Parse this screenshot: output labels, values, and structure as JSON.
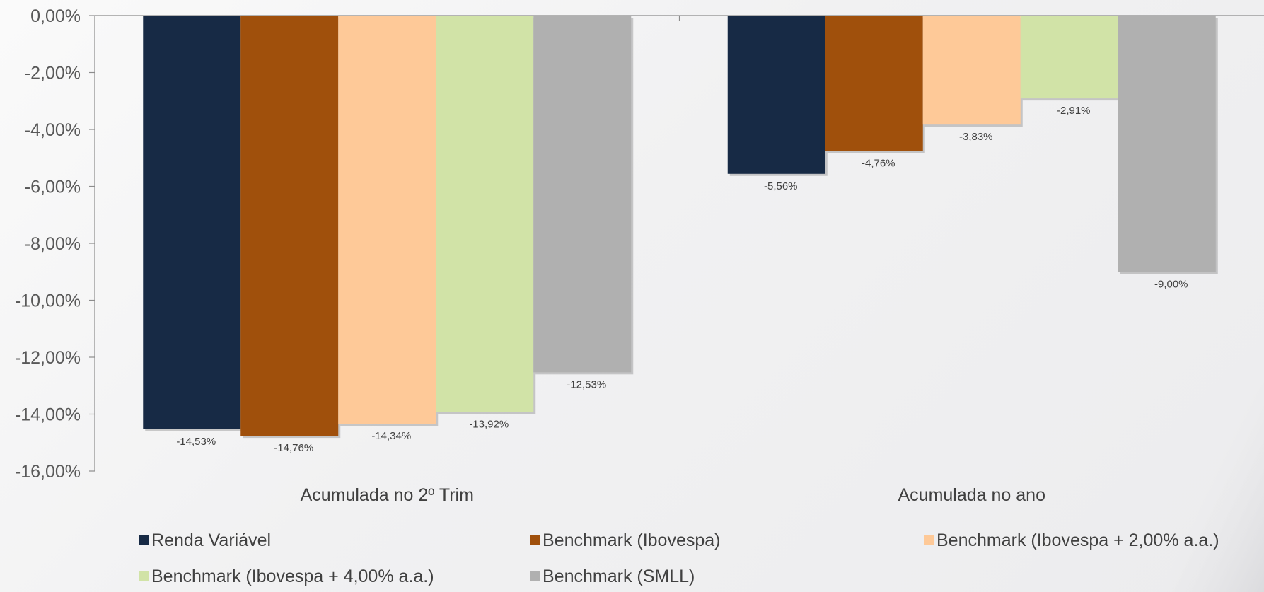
{
  "chart_data": {
    "type": "bar",
    "categories": [
      "Acumulada no 2º Trim",
      "Acumulada no ano"
    ],
    "series": [
      {
        "name": "Renda Variável",
        "color": "#172a45",
        "values": [
          -14.53,
          -5.56
        ],
        "labels": [
          "-14,53%",
          "-5,56%"
        ]
      },
      {
        "name": "Benchmark (Ibovespa)",
        "color": "#a0500c",
        "values": [
          -14.76,
          -4.76
        ],
        "labels": [
          "-14,76%",
          "-4,76%"
        ]
      },
      {
        "name": "Benchmark (Ibovespa + 2,00% a.a.)",
        "color": "#fec998",
        "values": [
          -14.34,
          -3.83
        ],
        "labels": [
          "-14,34%",
          "-3,83%"
        ]
      },
      {
        "name": "Benchmark (Ibovespa + 4,00% a.a.)",
        "color": "#d1e3a7",
        "values": [
          -13.92,
          -2.91
        ],
        "labels": [
          "-13,92%",
          "-2,91%"
        ]
      },
      {
        "name": "Benchmark (SMLL)",
        "color": "#b0b0b0",
        "values": [
          -12.53,
          -9.0
        ],
        "labels": [
          "-12,53%",
          "-9,00%"
        ]
      }
    ],
    "ylim": [
      -16,
      0
    ],
    "yticks": [
      0,
      -2,
      -4,
      -6,
      -8,
      -10,
      -12,
      -14,
      -16
    ],
    "ytick_labels": [
      "0,00%",
      "-2,00%",
      "-4,00%",
      "-6,00%",
      "-8,00%",
      "-10,00%",
      "-12,00%",
      "-14,00%",
      "-16,00%"
    ],
    "grid": false,
    "legend_position": "bottom",
    "title": "",
    "xlabel": "",
    "ylabel": ""
  }
}
